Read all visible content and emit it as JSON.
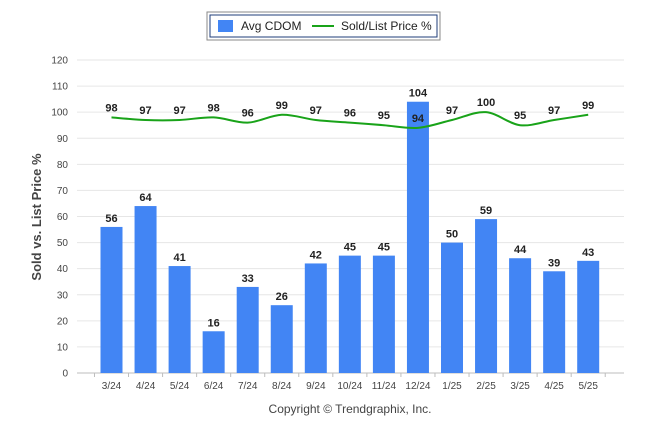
{
  "chart_data": {
    "type": "bar+line",
    "categories": [
      "3/24",
      "4/24",
      "5/24",
      "6/24",
      "7/24",
      "8/24",
      "9/24",
      "10/24",
      "11/24",
      "12/24",
      "1/25",
      "2/25",
      "3/25",
      "4/25",
      "5/25"
    ],
    "series": [
      {
        "name": "Avg CDOM",
        "type": "bar",
        "color": "#4285f4",
        "values": [
          56,
          64,
          41,
          16,
          33,
          26,
          42,
          45,
          45,
          104,
          50,
          59,
          44,
          39,
          43
        ]
      },
      {
        "name": "Sold/List Price %",
        "type": "line",
        "color": "#19a319",
        "values": [
          98,
          97,
          97,
          98,
          96,
          99,
          97,
          96,
          95,
          94,
          97,
          100,
          95,
          97,
          99
        ]
      }
    ],
    "ylabel": "Sold vs. List Price %",
    "ylim": [
      0,
      120
    ],
    "yticks": [
      0,
      10,
      20,
      30,
      40,
      50,
      60,
      70,
      80,
      90,
      100,
      110,
      120
    ],
    "grid": true,
    "legend_position": "top-center"
  },
  "footer": {
    "copyright": "Copyright © Trendgraphix, Inc."
  }
}
